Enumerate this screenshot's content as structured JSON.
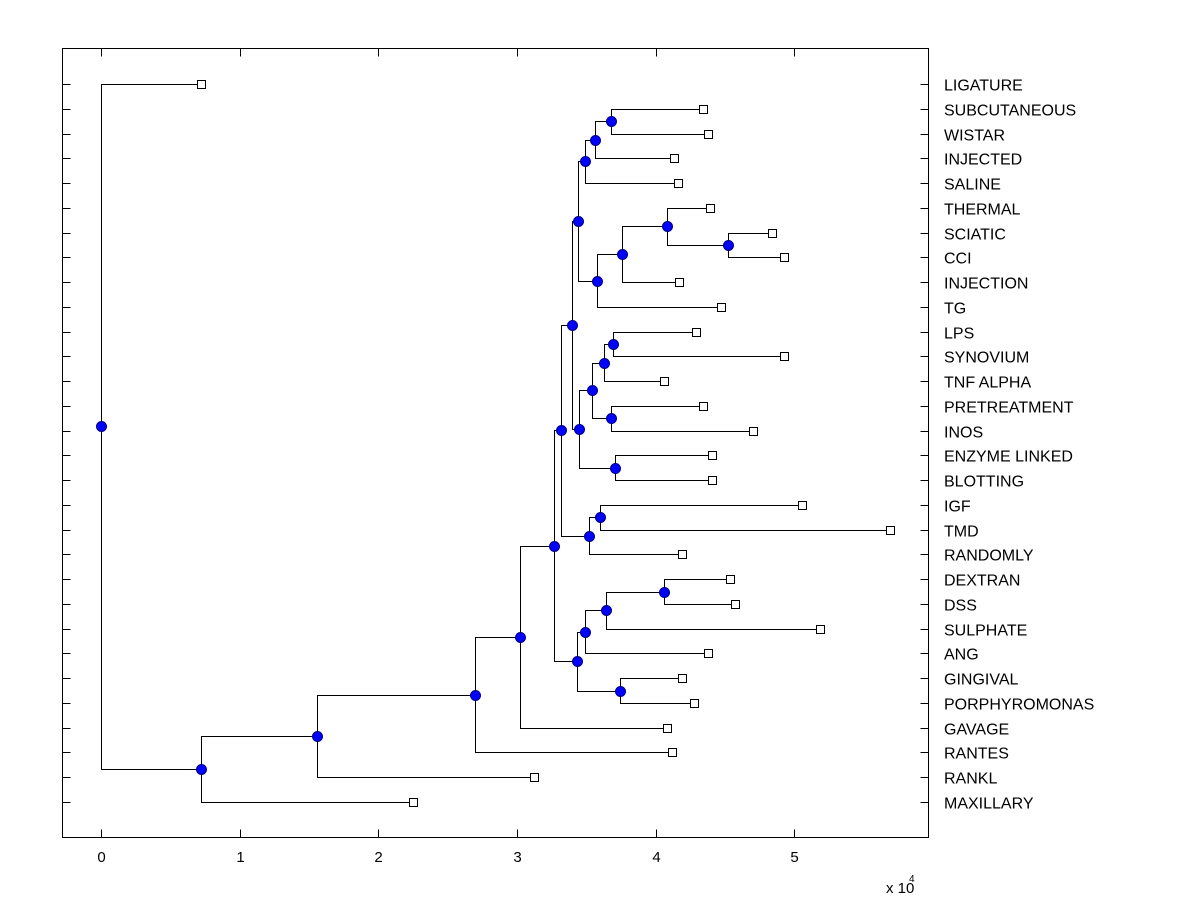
{
  "chart_data": {
    "type": "dendrogram",
    "title": "",
    "xlabel": "",
    "ylabel": "",
    "x_multiplier_label": "x 10",
    "x_multiplier_exponent": "4",
    "xlim": [
      -0.28,
      5.97
    ],
    "xticks": [
      0,
      1,
      2,
      3,
      4,
      5
    ],
    "xtick_labels": [
      "0",
      "1",
      "2",
      "3",
      "4",
      "5"
    ],
    "grid": false,
    "colors": {
      "node_fill": "#0000ff",
      "node_edge": "#000080",
      "leaf_fill": "#ffffff",
      "line": "#000000"
    },
    "leaves": [
      "LIGATURE",
      "SUBCUTANEOUS",
      "WISTAR",
      "INJECTED",
      "SALINE",
      "THERMAL",
      "SCIATIC",
      "CCI",
      "INJECTION",
      "TG",
      "LPS",
      "SYNOVIUM",
      "TNF ALPHA",
      "PRETREATMENT",
      "INOS",
      "ENZYME LINKED",
      "BLOTTING",
      "IGF",
      "TMD",
      "RANDOMLY",
      "DEXTRAN",
      "DSS",
      "SULPHATE",
      "ANG",
      "GINGIVAL",
      "PORPHYROMONAS",
      "GAVAGE",
      "RANTES",
      "RANKL",
      "MAXILLARY"
    ],
    "tree": {
      "x": 0.0,
      "children": [
        {
          "leaf": "LIGATURE",
          "x": 0.72
        },
        {
          "x": 0.72,
          "children": [
            {
              "x": 1.56,
              "children": [
                {
                  "x": 2.7,
                  "children": [
                    {
                      "x": 3.02,
                      "children": [
                        {
                          "x": 3.27,
                          "children": [
                            {
                              "x": 3.32,
                              "children": [
                                {
                                  "x": 3.4,
                                  "children": [
                                    {
                                      "x": 3.44,
                                      "children": [
                                        {
                                          "x": 3.49,
                                          "children": [
                                            {
                                              "x": 3.56,
                                              "children": [
                                                {
                                                  "x": 3.68,
                                                  "children": [
                                                    {
                                                      "leaf": "SUBCUTANEOUS",
                                                      "x": 4.34
                                                    },
                                                    {
                                                      "leaf": "WISTAR",
                                                      "x": 4.38
                                                    }
                                                  ]
                                                },
                                                {
                                                  "leaf": "INJECTED",
                                                  "x": 4.13
                                                }
                                              ]
                                            },
                                            {
                                              "leaf": "SALINE",
                                              "x": 4.16
                                            }
                                          ]
                                        },
                                        {
                                          "x": 3.58,
                                          "children": [
                                            {
                                              "x": 3.76,
                                              "children": [
                                                {
                                                  "x": 4.08,
                                                  "children": [
                                                    {
                                                      "leaf": "THERMAL",
                                                      "x": 4.39
                                                    },
                                                    {
                                                      "x": 4.52,
                                                      "children": [
                                                        {
                                                          "leaf": "SCIATIC",
                                                          "x": 4.84
                                                        },
                                                        {
                                                          "leaf": "CCI",
                                                          "x": 4.93
                                                        }
                                                      ]
                                                    }
                                                  ]
                                                },
                                                {
                                                  "leaf": "INJECTION",
                                                  "x": 4.17
                                                }
                                              ]
                                            },
                                            {
                                              "leaf": "TG",
                                              "x": 4.47
                                            }
                                          ]
                                        }
                                      ]
                                    },
                                    {
                                      "x": 3.45,
                                      "children": [
                                        {
                                          "x": 3.54,
                                          "children": [
                                            {
                                              "x": 3.63,
                                              "children": [
                                                {
                                                  "x": 3.69,
                                                  "children": [
                                                    {
                                                      "leaf": "LPS",
                                                      "x": 4.29
                                                    },
                                                    {
                                                      "leaf": "SYNOVIUM",
                                                      "x": 4.93
                                                    }
                                                  ]
                                                },
                                                {
                                                  "leaf": "TNF ALPHA",
                                                  "x": 4.06
                                                }
                                              ]
                                            },
                                            {
                                              "x": 3.68,
                                              "children": [
                                                {
                                                  "leaf": "PRETREATMENT",
                                                  "x": 4.34
                                                },
                                                {
                                                  "leaf": "INOS",
                                                  "x": 4.7
                                                }
                                              ]
                                            }
                                          ]
                                        },
                                        {
                                          "x": 3.71,
                                          "children": [
                                            {
                                              "leaf": "ENZYME LINKED",
                                              "x": 4.41
                                            },
                                            {
                                              "leaf": "BLOTTING",
                                              "x": 4.41
                                            }
                                          ]
                                        }
                                      ]
                                    }
                                  ]
                                },
                                {
                                  "x": 3.52,
                                  "children": [
                                    {
                                      "x": 3.6,
                                      "children": [
                                        {
                                          "leaf": "IGF",
                                          "x": 5.06
                                        },
                                        {
                                          "leaf": "TMD",
                                          "x": 5.69
                                        }
                                      ]
                                    },
                                    {
                                      "leaf": "RANDOMLY",
                                      "x": 4.19
                                    }
                                  ]
                                }
                              ]
                            },
                            {
                              "x": 3.43,
                              "children": [
                                {
                                  "x": 3.49,
                                  "children": [
                                    {
                                      "x": 3.64,
                                      "children": [
                                        {
                                          "x": 4.06,
                                          "children": [
                                            {
                                              "leaf": "DEXTRAN",
                                              "x": 4.54
                                            },
                                            {
                                              "leaf": "DSS",
                                              "x": 4.57
                                            }
                                          ]
                                        },
                                        {
                                          "leaf": "SULPHATE",
                                          "x": 5.19
                                        }
                                      ]
                                    },
                                    {
                                      "leaf": "ANG",
                                      "x": 4.38
                                    }
                                  ]
                                },
                                {
                                  "x": 3.74,
                                  "children": [
                                    {
                                      "leaf": "GINGIVAL",
                                      "x": 4.19
                                    },
                                    {
                                      "leaf": "PORPHYROMONAS",
                                      "x": 4.28
                                    }
                                  ]
                                }
                              ]
                            }
                          ]
                        },
                        {
                          "leaf": "GAVAGE",
                          "x": 4.08
                        }
                      ]
                    },
                    {
                      "leaf": "RANTES",
                      "x": 4.12
                    }
                  ]
                },
                {
                  "leaf": "RANKL",
                  "x": 3.12
                }
              ]
            },
            {
              "leaf": "MAXILLARY",
              "x": 2.25
            }
          ]
        }
      ]
    }
  }
}
